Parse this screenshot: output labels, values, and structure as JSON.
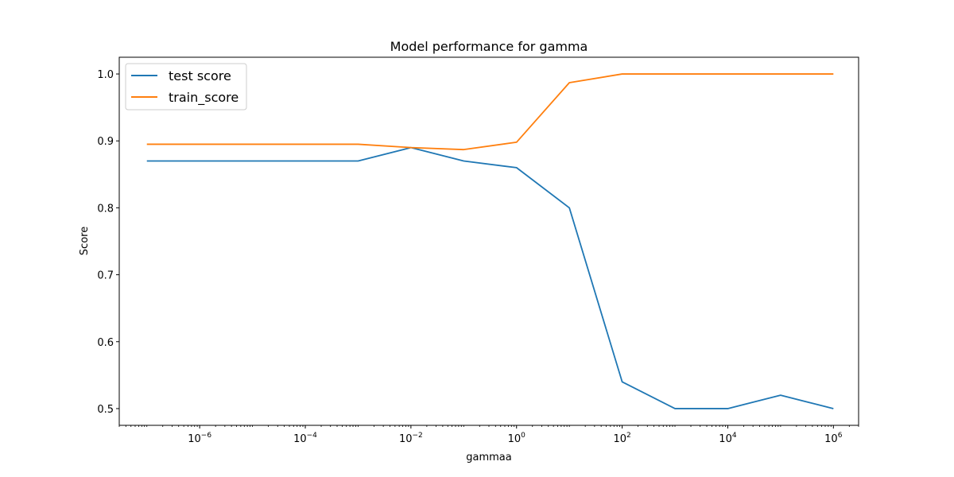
{
  "chart_data": {
    "type": "line",
    "title": "Model performance for gamma",
    "xlabel": "gammaa",
    "ylabel": "Score",
    "xscale": "log",
    "xlim": [
      3e-08,
      3000000.0
    ],
    "ylim": [
      0.475,
      1.025
    ],
    "grid": false,
    "legend_position": "top-left",
    "x": [
      1e-07,
      1e-06,
      1e-05,
      0.0001,
      0.001,
      0.01,
      0.1,
      1,
      10,
      100,
      1000,
      10000,
      100000,
      1000000
    ],
    "xticks": [
      {
        "value": 1e-06,
        "base": "10",
        "exp": "−6"
      },
      {
        "value": 0.0001,
        "base": "10",
        "exp": "−4"
      },
      {
        "value": 0.01,
        "base": "10",
        "exp": "−2"
      },
      {
        "value": 1,
        "base": "10",
        "exp": "0"
      },
      {
        "value": 100,
        "base": "10",
        "exp": "2"
      },
      {
        "value": 10000,
        "base": "10",
        "exp": "4"
      },
      {
        "value": 1000000,
        "base": "10",
        "exp": "6"
      }
    ],
    "yticks": [
      0.5,
      0.6,
      0.7,
      0.8,
      0.9,
      1.0
    ],
    "ytick_labels": [
      "0.5",
      "0.6",
      "0.7",
      "0.8",
      "0.9",
      "1.0"
    ],
    "series": [
      {
        "name": "test score",
        "color": "#1f77b4",
        "values": [
          0.87,
          0.87,
          0.87,
          0.87,
          0.87,
          0.89,
          0.87,
          0.86,
          0.8,
          0.54,
          0.5,
          0.5,
          0.52,
          0.5
        ]
      },
      {
        "name": "train_score",
        "color": "#ff7f0e",
        "values": [
          0.895,
          0.895,
          0.895,
          0.895,
          0.895,
          0.89,
          0.887,
          0.898,
          0.987,
          1.0,
          1.0,
          1.0,
          1.0,
          1.0
        ]
      }
    ]
  }
}
